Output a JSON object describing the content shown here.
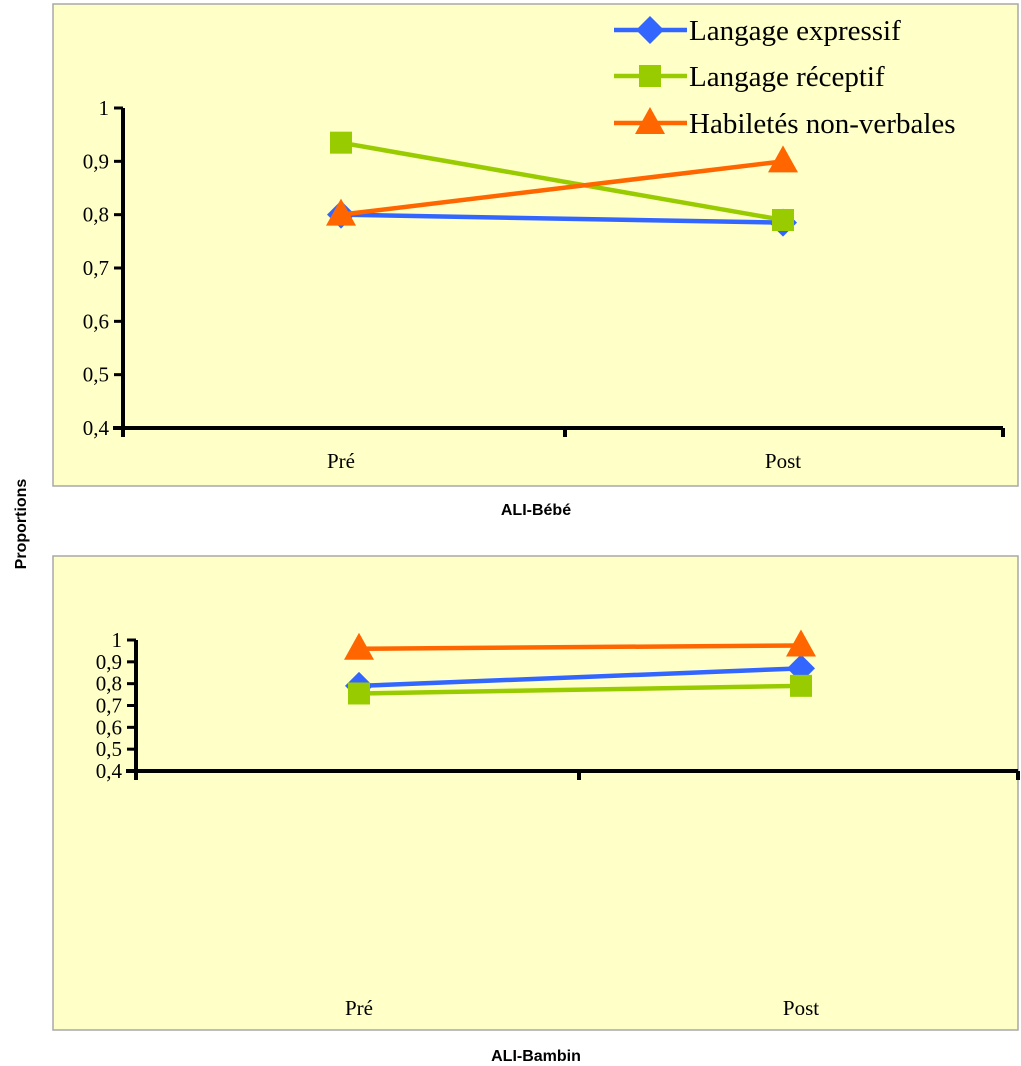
{
  "figure": {
    "ylabel": "Proportions"
  },
  "chart_data": [
    {
      "type": "line",
      "caption": "ALI-Bébé",
      "categories": [
        "Pré",
        "Post"
      ],
      "ylim": [
        0.4,
        1.0
      ],
      "yticks": [
        "0,4",
        "0,5",
        "0,6",
        "0,7",
        "0,8",
        "0,9",
        "1"
      ],
      "legend_position": "top-right",
      "grid": false,
      "series": [
        {
          "name": "Langage expressif",
          "values": [
            0.8,
            0.785
          ],
          "color": "#3366ff",
          "marker": "diamond"
        },
        {
          "name": "Langage réceptif",
          "values": [
            0.935,
            0.79
          ],
          "color": "#99cc00",
          "marker": "square"
        },
        {
          "name": "Habiletés non-verbales",
          "values": [
            0.8,
            0.9
          ],
          "color": "#ff6600",
          "marker": "triangle"
        }
      ]
    },
    {
      "type": "line",
      "caption": "ALI-Bambin",
      "categories": [
        "Pré",
        "Post"
      ],
      "ylim": [
        0.4,
        1.0
      ],
      "yticks": [
        "0,4",
        "0,5",
        "0,6",
        "0,7",
        "0,8",
        "0,9",
        "1"
      ],
      "grid": false,
      "series": [
        {
          "name": "Langage expressif",
          "values": [
            0.79,
            0.87
          ],
          "color": "#3366ff",
          "marker": "diamond"
        },
        {
          "name": "Langage réceptif",
          "values": [
            0.755,
            0.79
          ],
          "color": "#99cc00",
          "marker": "square"
        },
        {
          "name": "Habiletés non-verbales",
          "values": [
            0.96,
            0.975
          ],
          "color": "#ff6600",
          "marker": "triangle"
        }
      ]
    }
  ]
}
